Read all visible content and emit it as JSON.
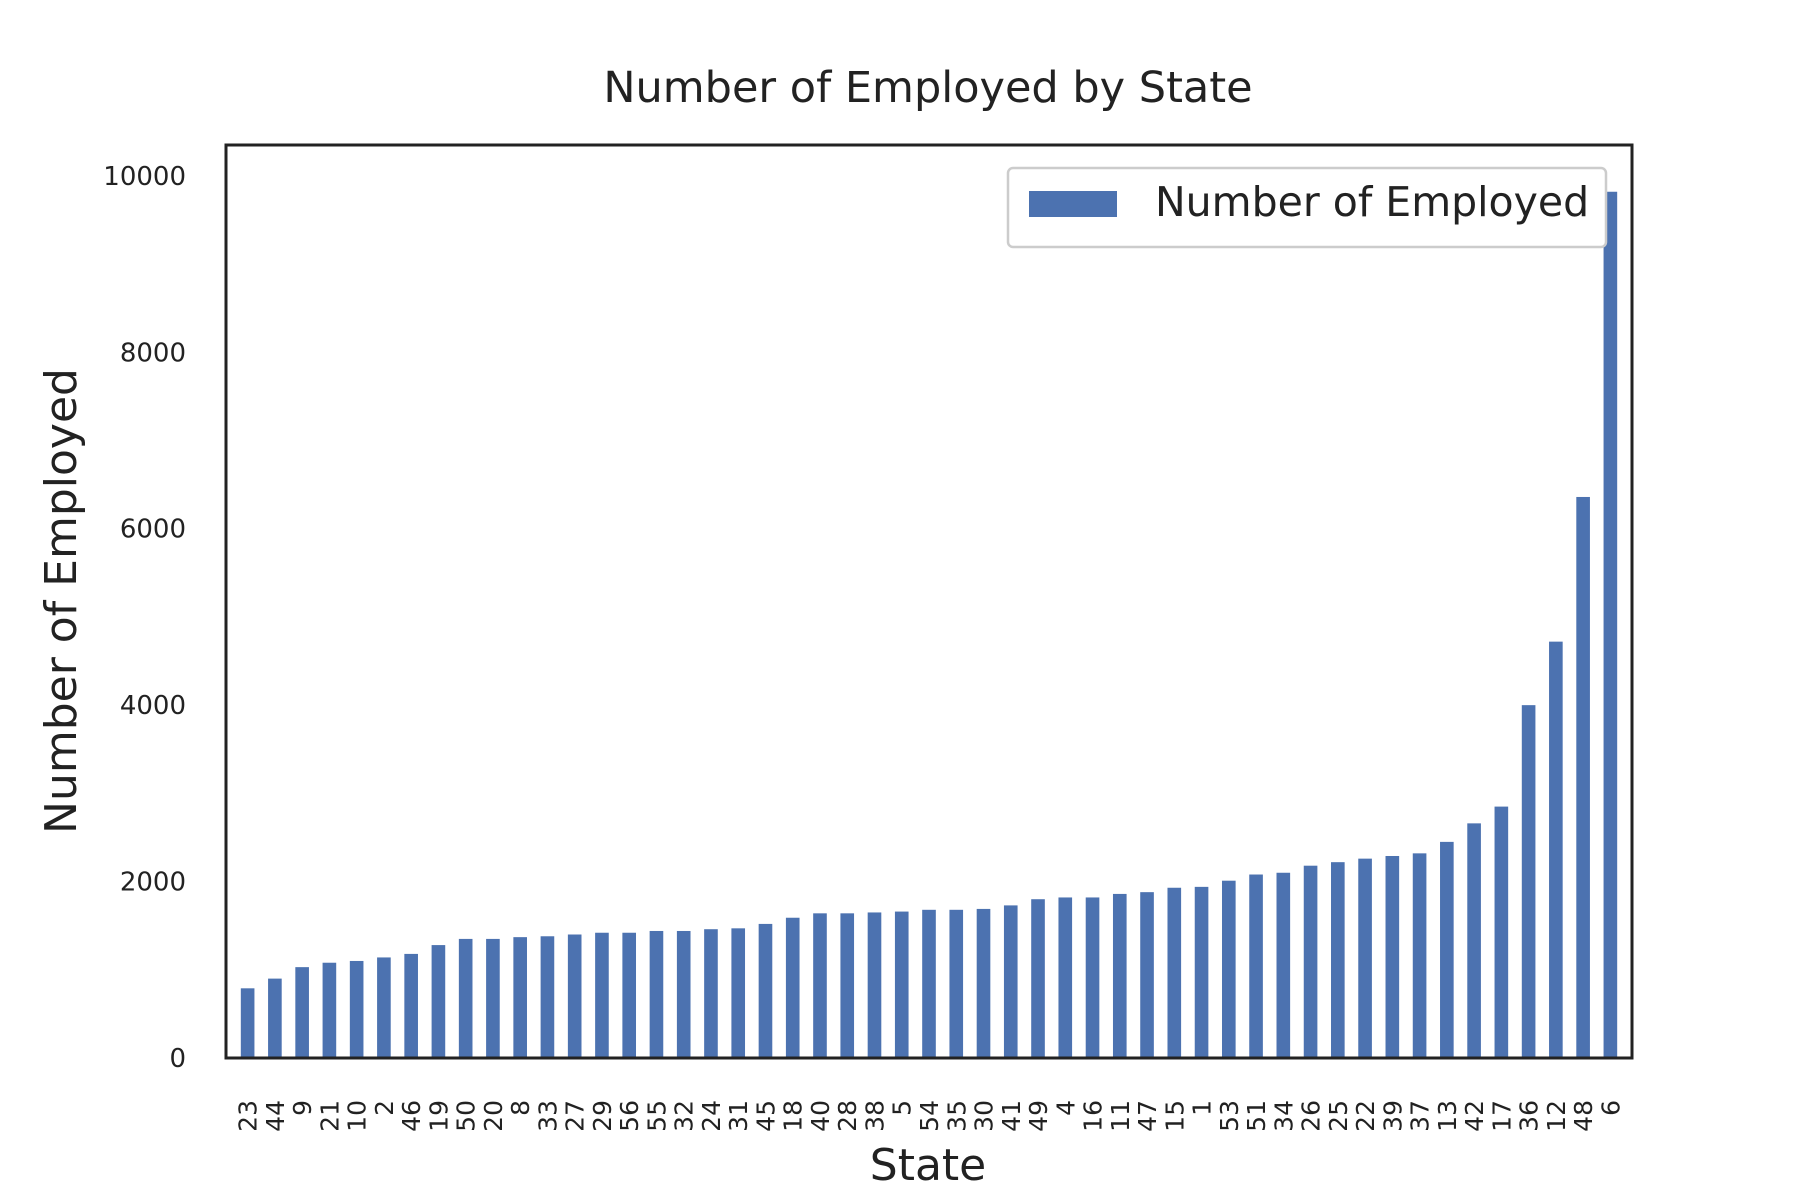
{
  "chart_data": {
    "type": "bar",
    "title": "Number of Employed by State",
    "xlabel": "State",
    "ylabel": "Number of Employed",
    "ylim": [
      0,
      10350
    ],
    "yticks": [
      0,
      2000,
      4000,
      6000,
      8000,
      10000
    ],
    "grid": false,
    "legend_position": "top-right",
    "categories": [
      "23",
      "44",
      "9",
      "21",
      "10",
      "2",
      "46",
      "19",
      "50",
      "20",
      "8",
      "33",
      "27",
      "29",
      "56",
      "55",
      "32",
      "24",
      "31",
      "45",
      "18",
      "40",
      "28",
      "38",
      "5",
      "54",
      "35",
      "30",
      "41",
      "49",
      "4",
      "16",
      "11",
      "47",
      "15",
      "1",
      "53",
      "51",
      "34",
      "26",
      "25",
      "22",
      "39",
      "37",
      "13",
      "42",
      "17",
      "36",
      "12",
      "48",
      "6"
    ],
    "series": [
      {
        "name": "Number of Employed",
        "color": "#4C72B0",
        "values": [
          790,
          900,
          1030,
          1080,
          1100,
          1140,
          1180,
          1280,
          1350,
          1350,
          1370,
          1380,
          1400,
          1420,
          1420,
          1440,
          1440,
          1460,
          1470,
          1520,
          1590,
          1640,
          1640,
          1650,
          1660,
          1680,
          1680,
          1690,
          1730,
          1800,
          1820,
          1820,
          1860,
          1880,
          1930,
          1940,
          2010,
          2080,
          2100,
          2180,
          2220,
          2260,
          2290,
          2320,
          2450,
          2660,
          2850,
          4000,
          4720,
          6360,
          9820
        ]
      }
    ]
  }
}
